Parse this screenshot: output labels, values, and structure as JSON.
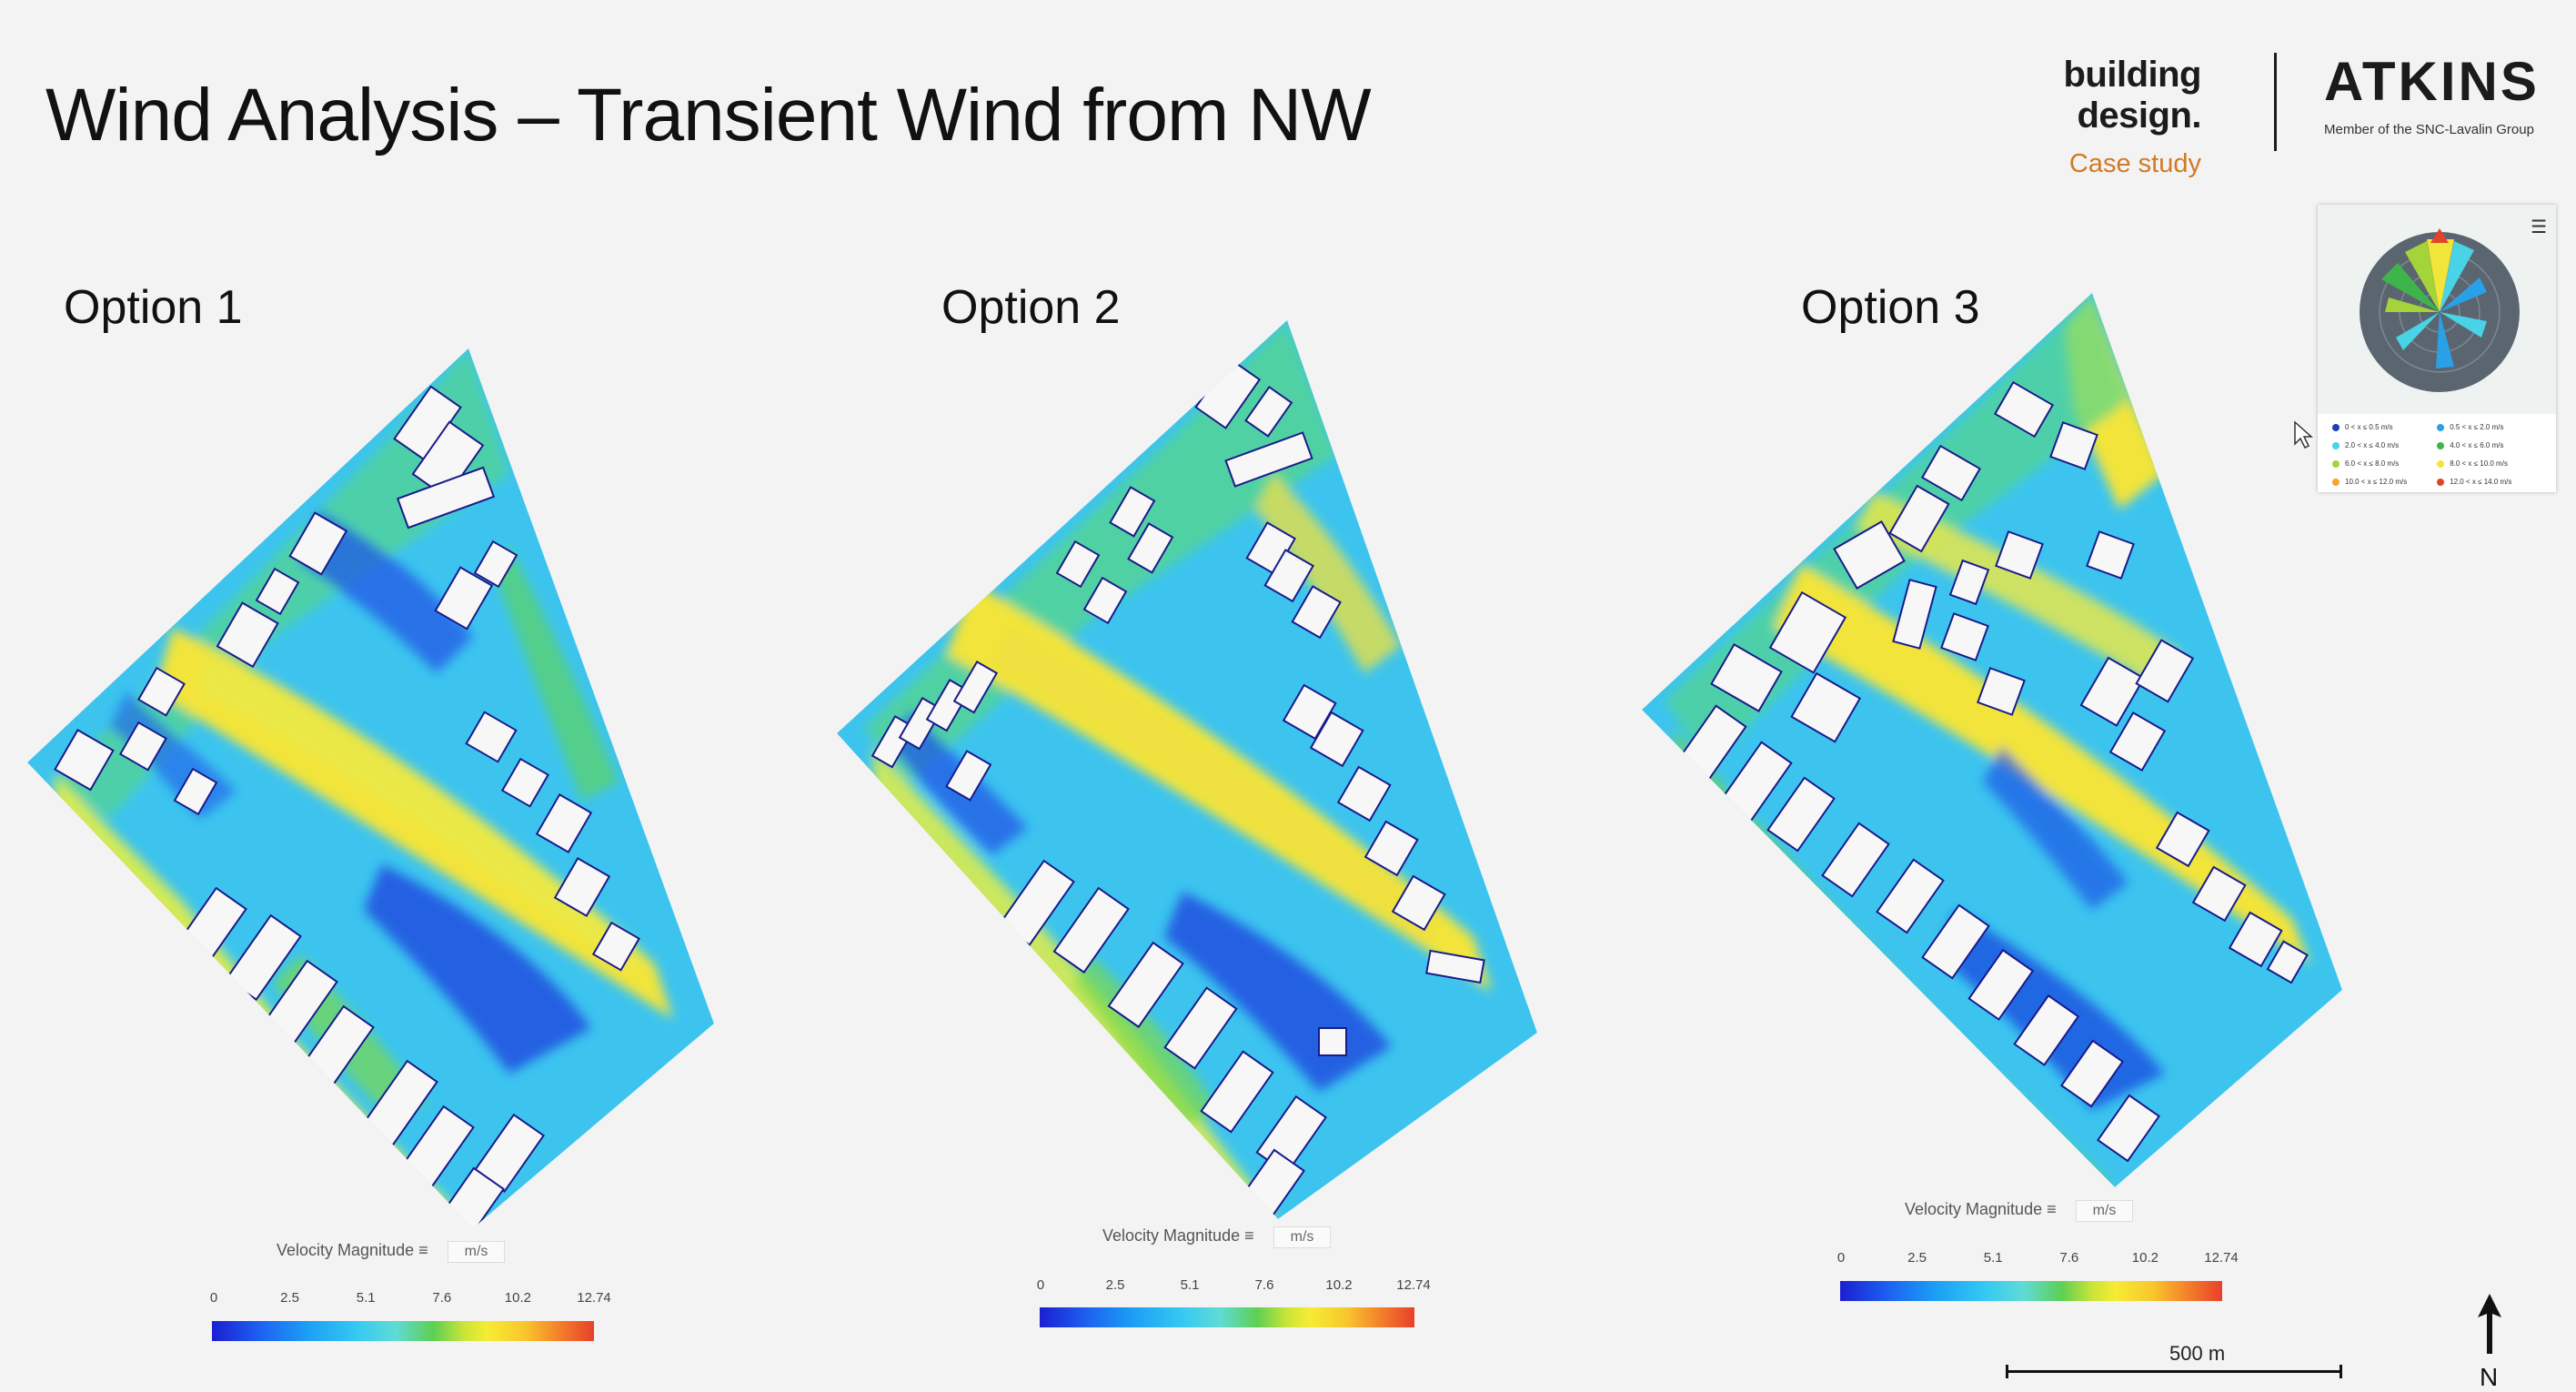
{
  "slide": {
    "title": "Wind Analysis – Transient Wind from NW"
  },
  "branding": {
    "publication": "building design.",
    "publication_sub": "Case study",
    "company": "ATKINS",
    "company_sub": "Member of the SNC-Lavalin Group"
  },
  "options": [
    {
      "label": "Option 1"
    },
    {
      "label": "Option 2"
    },
    {
      "label": "Option 3"
    }
  ],
  "legend": {
    "title": "Velocity Magnitude",
    "unit": "m/s",
    "ticks": [
      "0",
      "2.5",
      "5.1",
      "7.6",
      "10.2",
      "12.74"
    ]
  },
  "windrose": {
    "menu_icon": "hamburger-icon",
    "legend": [
      {
        "label": "0 < x ≤ 0.5 m/s",
        "color": "#1f3fb3"
      },
      {
        "label": "0.5 < x ≤ 2.0 m/s",
        "color": "#2aa0e6"
      },
      {
        "label": "2.0 < x ≤ 4.0 m/s",
        "color": "#48d3e6"
      },
      {
        "label": "4.0 < x ≤ 6.0 m/s",
        "color": "#3db54a"
      },
      {
        "label": "6.0 < x ≤ 8.0 m/s",
        "color": "#a4d43a"
      },
      {
        "label": "8.0 < x ≤ 10.0 m/s",
        "color": "#f2e53a"
      },
      {
        "label": "10.0 < x ≤ 12.0 m/s",
        "color": "#f3a62f"
      },
      {
        "label": "12.0 < x ≤ 14.0 m/s",
        "color": "#e0452c"
      }
    ]
  },
  "scale": {
    "label": "500 m"
  },
  "north": {
    "label": "N"
  },
  "colors": {
    "accent": "#d07a25",
    "low": "#1b1fd1",
    "mid": "#35c9f2",
    "green": "#5ecf53",
    "high": "#f6ec33",
    "max": "#e8402a"
  }
}
